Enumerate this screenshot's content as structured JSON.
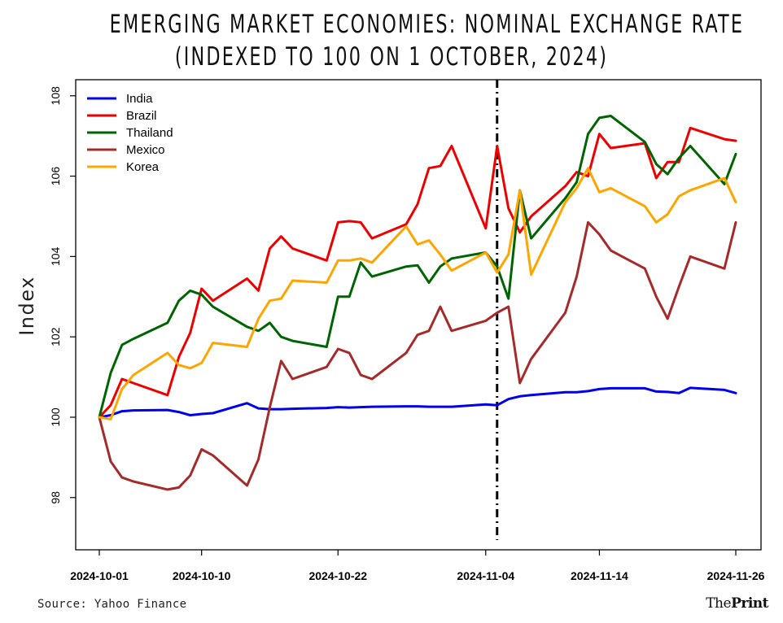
{
  "title_line1": "EMERGING MARKET ECONOMIES: NOMINAL EXCHANGE RATE",
  "title_line2": "(INDEXED TO 100 ON 1 OCTOBER, 2024)",
  "source": "Source: Yahoo Finance",
  "brand": {
    "part1": "The",
    "part2": "Print"
  },
  "chart_data": {
    "type": "line",
    "ylabel": "Index",
    "xlabel": "",
    "ylim": [
      96.7,
      108.4
    ],
    "y_ticks": [
      98,
      100,
      102,
      104,
      106,
      108
    ],
    "x_range": [
      "2024-10-01",
      "2024-11-27"
    ],
    "x_ticks": [
      "2024-10-01",
      "2024-10-10",
      "2024-10-22",
      "2024-11-04",
      "2024-11-14",
      "2024-11-26"
    ],
    "vline": "2024-11-05",
    "legend_position": "top-left",
    "colors": {
      "India": "#0000ee",
      "Brazil": "#ee0000",
      "Thailand": "#006400",
      "Mexico": "#a52a2a",
      "Korea": "#ffa500"
    },
    "series": [
      {
        "name": "India",
        "points": [
          [
            "2024-10-01",
            100.0
          ],
          [
            "2024-10-02",
            100.05
          ],
          [
            "2024-10-03",
            100.15
          ],
          [
            "2024-10-04",
            100.17
          ],
          [
            "2024-10-07",
            100.18
          ],
          [
            "2024-10-08",
            100.13
          ],
          [
            "2024-10-09",
            100.05
          ],
          [
            "2024-10-10",
            100.08
          ],
          [
            "2024-10-11",
            100.1
          ],
          [
            "2024-10-14",
            100.35
          ],
          [
            "2024-10-15",
            100.22
          ],
          [
            "2024-10-16",
            100.2
          ],
          [
            "2024-10-17",
            100.2
          ],
          [
            "2024-10-18",
            100.21
          ],
          [
            "2024-10-21",
            100.23
          ],
          [
            "2024-10-22",
            100.25
          ],
          [
            "2024-10-23",
            100.24
          ],
          [
            "2024-10-24",
            100.25
          ],
          [
            "2024-10-25",
            100.26
          ],
          [
            "2024-10-28",
            100.27
          ],
          [
            "2024-10-29",
            100.27
          ],
          [
            "2024-10-30",
            100.26
          ],
          [
            "2024-10-31",
            100.26
          ],
          [
            "2024-11-01",
            100.26
          ],
          [
            "2024-11-04",
            100.32
          ],
          [
            "2024-11-05",
            100.3
          ],
          [
            "2024-11-06",
            100.45
          ],
          [
            "2024-11-07",
            100.52
          ],
          [
            "2024-11-08",
            100.55
          ],
          [
            "2024-11-11",
            100.62
          ],
          [
            "2024-11-12",
            100.62
          ],
          [
            "2024-11-13",
            100.65
          ],
          [
            "2024-11-14",
            100.7
          ],
          [
            "2024-11-15",
            100.72
          ],
          [
            "2024-11-18",
            100.72
          ],
          [
            "2024-11-19",
            100.64
          ],
          [
            "2024-11-20",
            100.63
          ],
          [
            "2024-11-21",
            100.6
          ],
          [
            "2024-11-22",
            100.73
          ],
          [
            "2024-11-25",
            100.68
          ],
          [
            "2024-11-26",
            100.6
          ]
        ]
      },
      {
        "name": "Brazil",
        "points": [
          [
            "2024-10-01",
            100.0
          ],
          [
            "2024-10-02",
            100.3
          ],
          [
            "2024-10-03",
            100.95
          ],
          [
            "2024-10-04",
            100.85
          ],
          [
            "2024-10-07",
            100.55
          ],
          [
            "2024-10-08",
            101.5
          ],
          [
            "2024-10-09",
            102.1
          ],
          [
            "2024-10-10",
            103.2
          ],
          [
            "2024-10-11",
            102.9
          ],
          [
            "2024-10-14",
            103.45
          ],
          [
            "2024-10-15",
            103.15
          ],
          [
            "2024-10-16",
            104.2
          ],
          [
            "2024-10-17",
            104.5
          ],
          [
            "2024-10-18",
            104.2
          ],
          [
            "2024-10-21",
            103.9
          ],
          [
            "2024-10-22",
            104.85
          ],
          [
            "2024-10-23",
            104.88
          ],
          [
            "2024-10-24",
            104.85
          ],
          [
            "2024-10-25",
            104.45
          ],
          [
            "2024-10-28",
            104.8
          ],
          [
            "2024-10-29",
            105.3
          ],
          [
            "2024-10-30",
            106.2
          ],
          [
            "2024-10-31",
            106.25
          ],
          [
            "2024-11-01",
            106.75
          ],
          [
            "2024-11-04",
            104.7
          ],
          [
            "2024-11-05",
            106.75
          ],
          [
            "2024-11-06",
            105.2
          ],
          [
            "2024-11-07",
            104.6
          ],
          [
            "2024-11-08",
            105.0
          ],
          [
            "2024-11-11",
            105.75
          ],
          [
            "2024-11-12",
            106.1
          ],
          [
            "2024-11-13",
            106.0
          ],
          [
            "2024-11-14",
            107.05
          ],
          [
            "2024-11-15",
            106.7
          ],
          [
            "2024-11-18",
            106.82
          ],
          [
            "2024-11-19",
            105.95
          ],
          [
            "2024-11-20",
            106.35
          ],
          [
            "2024-11-21",
            106.35
          ],
          [
            "2024-11-22",
            107.2
          ],
          [
            "2024-11-25",
            106.92
          ],
          [
            "2024-11-26",
            106.88
          ]
        ]
      },
      {
        "name": "Thailand",
        "points": [
          [
            "2024-10-01",
            100.0
          ],
          [
            "2024-10-02",
            101.1
          ],
          [
            "2024-10-03",
            101.8
          ],
          [
            "2024-10-04",
            101.95
          ],
          [
            "2024-10-07",
            102.35
          ],
          [
            "2024-10-08",
            102.9
          ],
          [
            "2024-10-09",
            103.15
          ],
          [
            "2024-10-10",
            103.05
          ],
          [
            "2024-10-11",
            102.75
          ],
          [
            "2024-10-14",
            102.25
          ],
          [
            "2024-10-15",
            102.15
          ],
          [
            "2024-10-16",
            102.35
          ],
          [
            "2024-10-17",
            102.0
          ],
          [
            "2024-10-18",
            101.9
          ],
          [
            "2024-10-21",
            101.75
          ],
          [
            "2024-10-22",
            103.0
          ],
          [
            "2024-10-23",
            103.0
          ],
          [
            "2024-10-24",
            103.85
          ],
          [
            "2024-10-25",
            103.5
          ],
          [
            "2024-10-28",
            103.75
          ],
          [
            "2024-10-29",
            103.78
          ],
          [
            "2024-10-30",
            103.35
          ],
          [
            "2024-10-31",
            103.75
          ],
          [
            "2024-11-01",
            103.95
          ],
          [
            "2024-11-04",
            104.1
          ],
          [
            "2024-11-05",
            103.75
          ],
          [
            "2024-11-06",
            102.95
          ],
          [
            "2024-11-07",
            105.65
          ],
          [
            "2024-11-08",
            104.45
          ],
          [
            "2024-11-11",
            105.45
          ],
          [
            "2024-11-12",
            105.85
          ],
          [
            "2024-11-13",
            107.05
          ],
          [
            "2024-11-14",
            107.45
          ],
          [
            "2024-11-15",
            107.5
          ],
          [
            "2024-11-18",
            106.85
          ],
          [
            "2024-11-19",
            106.3
          ],
          [
            "2024-11-20",
            106.05
          ],
          [
            "2024-11-21",
            106.45
          ],
          [
            "2024-11-22",
            106.75
          ],
          [
            "2024-11-25",
            105.8
          ],
          [
            "2024-11-26",
            106.55
          ]
        ]
      },
      {
        "name": "Mexico",
        "points": [
          [
            "2024-10-01",
            100.0
          ],
          [
            "2024-10-02",
            98.9
          ],
          [
            "2024-10-03",
            98.5
          ],
          [
            "2024-10-04",
            98.4
          ],
          [
            "2024-10-07",
            98.2
          ],
          [
            "2024-10-08",
            98.25
          ],
          [
            "2024-10-09",
            98.55
          ],
          [
            "2024-10-10",
            99.2
          ],
          [
            "2024-10-11",
            99.05
          ],
          [
            "2024-10-14",
            98.3
          ],
          [
            "2024-10-15",
            98.95
          ],
          [
            "2024-10-16",
            100.25
          ],
          [
            "2024-10-17",
            101.4
          ],
          [
            "2024-10-18",
            100.95
          ],
          [
            "2024-10-21",
            101.25
          ],
          [
            "2024-10-22",
            101.7
          ],
          [
            "2024-10-23",
            101.6
          ],
          [
            "2024-10-24",
            101.05
          ],
          [
            "2024-10-25",
            100.95
          ],
          [
            "2024-10-28",
            101.6
          ],
          [
            "2024-10-29",
            102.05
          ],
          [
            "2024-10-30",
            102.15
          ],
          [
            "2024-10-31",
            102.75
          ],
          [
            "2024-11-01",
            102.15
          ],
          [
            "2024-11-04",
            102.4
          ],
          [
            "2024-11-05",
            102.6
          ],
          [
            "2024-11-06",
            102.75
          ],
          [
            "2024-11-07",
            100.85
          ],
          [
            "2024-11-08",
            101.45
          ],
          [
            "2024-11-11",
            102.6
          ],
          [
            "2024-11-12",
            103.5
          ],
          [
            "2024-11-13",
            104.85
          ],
          [
            "2024-11-14",
            104.55
          ],
          [
            "2024-11-15",
            104.15
          ],
          [
            "2024-11-18",
            103.7
          ],
          [
            "2024-11-19",
            103.0
          ],
          [
            "2024-11-20",
            102.45
          ],
          [
            "2024-11-21",
            103.25
          ],
          [
            "2024-11-22",
            104.0
          ],
          [
            "2024-11-25",
            103.7
          ],
          [
            "2024-11-26",
            104.85
          ]
        ]
      },
      {
        "name": "Korea",
        "points": [
          [
            "2024-10-01",
            100.0
          ],
          [
            "2024-10-02",
            99.95
          ],
          [
            "2024-10-03",
            100.7
          ],
          [
            "2024-10-04",
            101.05
          ],
          [
            "2024-10-07",
            101.6
          ],
          [
            "2024-10-08",
            101.3
          ],
          [
            "2024-10-09",
            101.22
          ],
          [
            "2024-10-10",
            101.35
          ],
          [
            "2024-10-11",
            101.85
          ],
          [
            "2024-10-14",
            101.75
          ],
          [
            "2024-10-15",
            102.45
          ],
          [
            "2024-10-16",
            102.9
          ],
          [
            "2024-10-17",
            102.95
          ],
          [
            "2024-10-18",
            103.4
          ],
          [
            "2024-10-21",
            103.35
          ],
          [
            "2024-10-22",
            103.9
          ],
          [
            "2024-10-23",
            103.9
          ],
          [
            "2024-10-24",
            103.95
          ],
          [
            "2024-10-25",
            103.85
          ],
          [
            "2024-10-28",
            104.75
          ],
          [
            "2024-10-29",
            104.3
          ],
          [
            "2024-10-30",
            104.4
          ],
          [
            "2024-10-31",
            104.05
          ],
          [
            "2024-11-01",
            103.65
          ],
          [
            "2024-11-04",
            104.1
          ],
          [
            "2024-11-05",
            103.6
          ],
          [
            "2024-11-06",
            104.05
          ],
          [
            "2024-11-07",
            105.65
          ],
          [
            "2024-11-08",
            103.55
          ],
          [
            "2024-11-11",
            105.35
          ],
          [
            "2024-11-12",
            105.7
          ],
          [
            "2024-11-13",
            106.2
          ],
          [
            "2024-11-14",
            105.6
          ],
          [
            "2024-11-15",
            105.7
          ],
          [
            "2024-11-18",
            105.25
          ],
          [
            "2024-11-19",
            104.85
          ],
          [
            "2024-11-20",
            105.05
          ],
          [
            "2024-11-21",
            105.5
          ],
          [
            "2024-11-22",
            105.65
          ],
          [
            "2024-11-25",
            105.95
          ],
          [
            "2024-11-26",
            105.35
          ]
        ]
      }
    ]
  }
}
